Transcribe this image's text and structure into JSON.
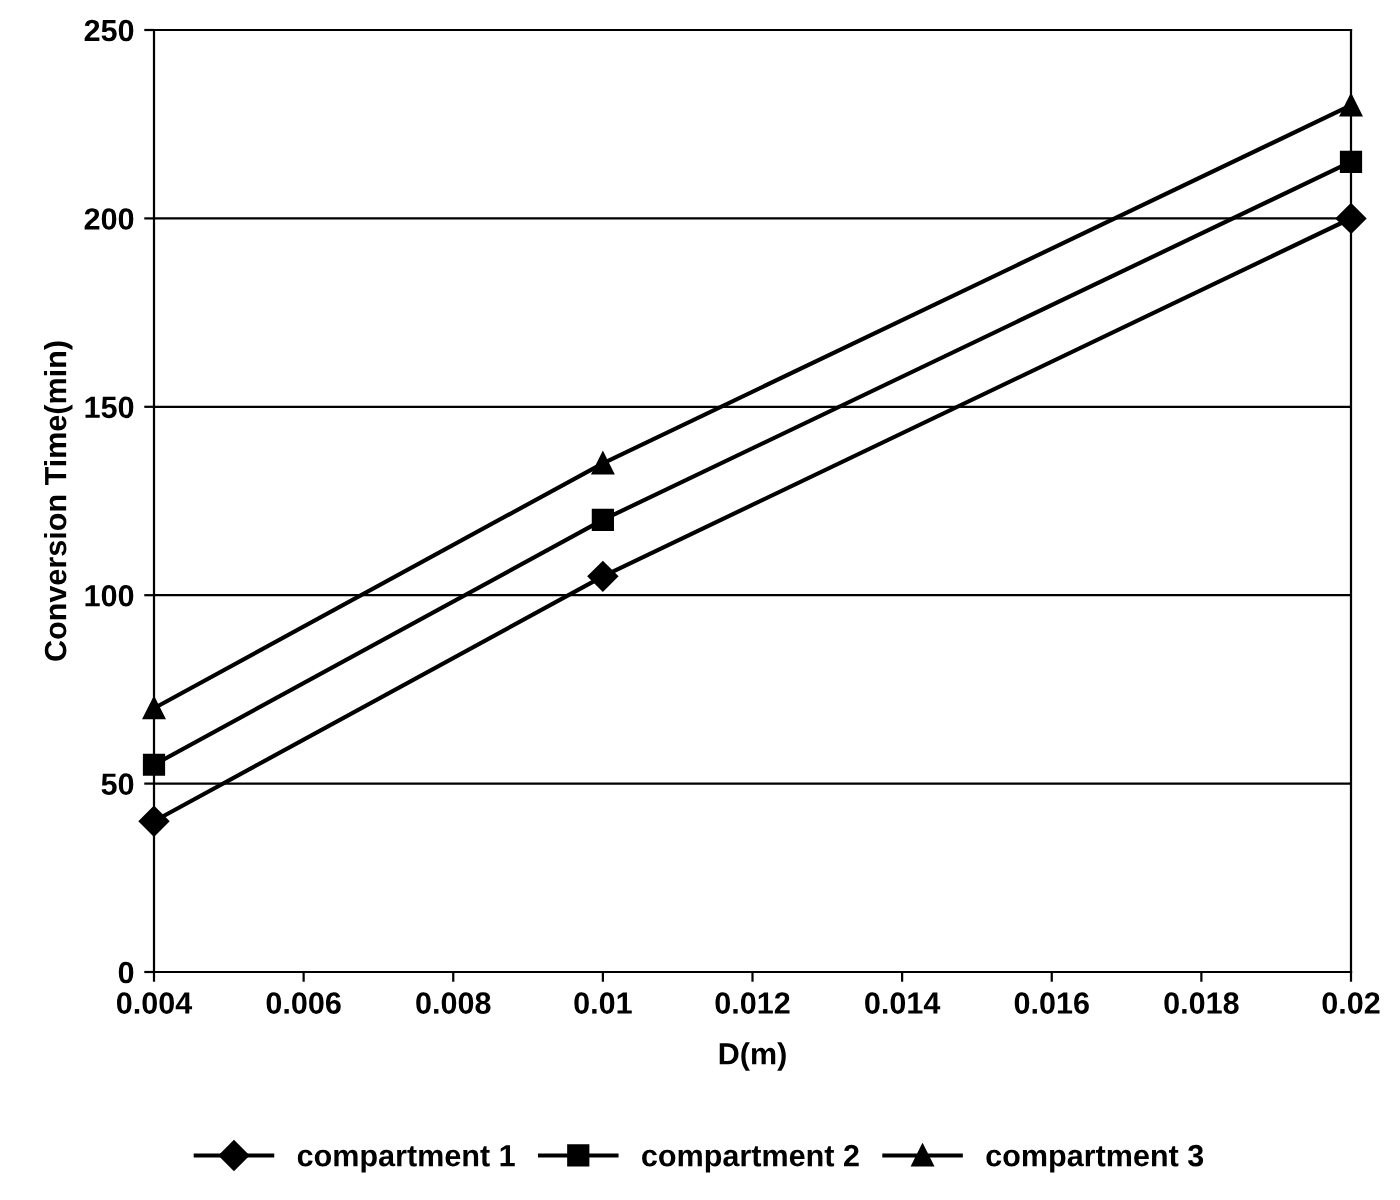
{
  "chart_data": {
    "type": "line",
    "xlabel": "D(m)",
    "ylabel": "Conversion Time(min)",
    "x": [
      0.004,
      0.01,
      0.02
    ],
    "series": [
      {
        "name": "compartment 1",
        "color": "#000000",
        "marker": "diamond",
        "values": [
          40,
          105,
          200
        ]
      },
      {
        "name": "compartment 2",
        "color": "#000000",
        "marker": "square",
        "values": [
          55,
          120,
          215
        ]
      },
      {
        "name": "compartment 3",
        "color": "#000000",
        "marker": "triangle",
        "values": [
          70,
          135,
          230
        ]
      }
    ],
    "xlim": [
      0.004,
      0.02
    ],
    "xticks": [
      0.004,
      0.006,
      0.008,
      0.01,
      0.012,
      0.014,
      0.016,
      0.018,
      0.02
    ],
    "ylim": [
      0,
      250
    ],
    "yticks": [
      0,
      50,
      100,
      150,
      200,
      250
    ],
    "grid": "y",
    "legend": "bottom",
    "line_style": "solid"
  }
}
